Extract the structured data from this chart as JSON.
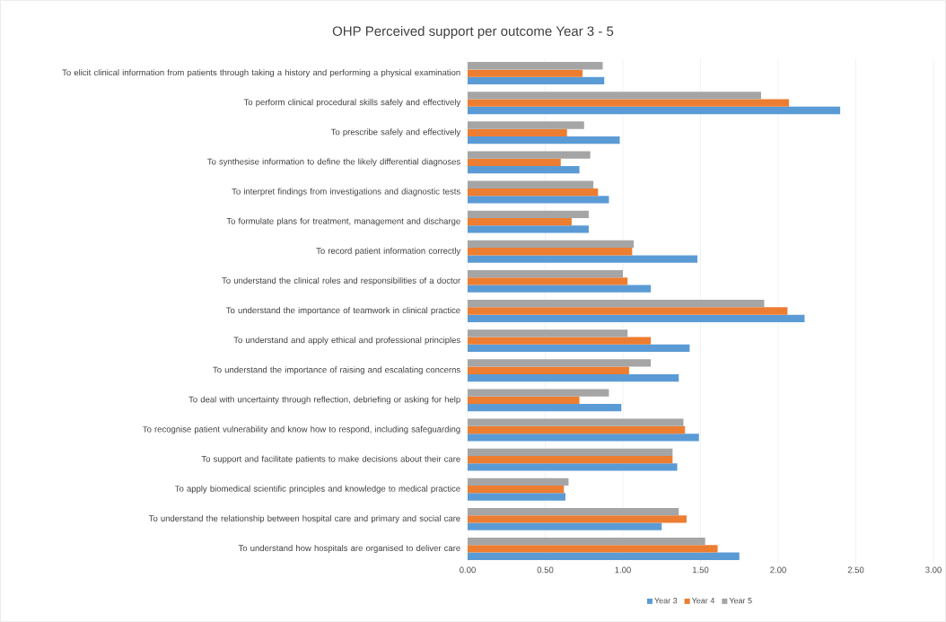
{
  "chart_data": {
    "type": "bar",
    "orientation": "horizontal",
    "title": "OHP Perceived support per outcome Year 3 - 5",
    "categories": [
      "To elicit clinical information from patients through taking a history and performing a physical examination",
      "To perform clinical procedural skills safely and effectively",
      "To prescribe safely and effectively",
      "To synthesise information to define the likely differential diagnoses",
      "To interpret findings from investigations and diagnostic tests",
      "To formulate plans for treatment, management and discharge",
      "To record patient information correctly",
      "To understand the clinical roles and responsibilities of a doctor",
      "To understand the importance of teamwork in clinical practice",
      "To understand and apply ethical and professional principles",
      "To understand the importance of raising and escalating concerns",
      "To deal with uncertainty through reflection, debriefing or asking for help",
      "To recognise patient vulnerability and know how to respond, including safeguarding",
      "To support and facilitate patients to make decisions about their care",
      "To apply biomedical scientific principles and knowledge to medical practice",
      "To understand the relationship between hospital care and primary and social care",
      "To understand how hospitals are organised to deliver care"
    ],
    "series": [
      {
        "name": "Year 3",
        "color": "#5b9bd5",
        "values": [
          0.88,
          2.4,
          0.98,
          0.72,
          0.91,
          0.78,
          1.48,
          1.18,
          2.17,
          1.43,
          1.36,
          0.99,
          1.49,
          1.35,
          0.63,
          1.25,
          1.75
        ]
      },
      {
        "name": "Year 4",
        "color": "#ed7d31",
        "values": [
          0.74,
          2.07,
          0.64,
          0.6,
          0.84,
          0.67,
          1.06,
          1.03,
          2.06,
          1.18,
          1.04,
          0.72,
          1.4,
          1.32,
          0.62,
          1.41,
          1.61
        ]
      },
      {
        "name": "Year 5",
        "color": "#a5a5a5",
        "values": [
          0.87,
          1.89,
          0.75,
          0.79,
          0.81,
          0.78,
          1.07,
          1.0,
          1.91,
          1.03,
          1.18,
          0.91,
          1.39,
          1.32,
          0.65,
          1.36,
          1.53
        ]
      }
    ],
    "xlim": [
      0,
      3
    ],
    "xticks": [
      {
        "value": 0,
        "label": "0.00"
      },
      {
        "value": 0.5,
        "label": "0.50"
      },
      {
        "value": 1,
        "label": "1.00"
      },
      {
        "value": 1.5,
        "label": "1.50"
      },
      {
        "value": 2,
        "label": "2.00"
      },
      {
        "value": 2.5,
        "label": "2.50"
      },
      {
        "value": 3,
        "label": "3.00"
      }
    ],
    "grid": "x",
    "legend": "bottom"
  }
}
